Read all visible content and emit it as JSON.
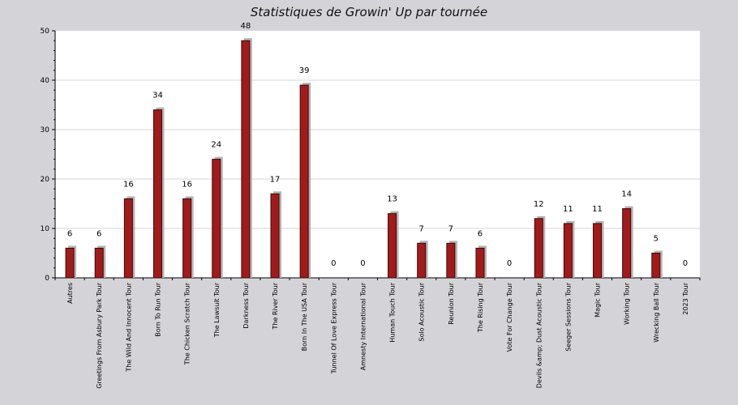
{
  "chart_data": {
    "type": "bar",
    "title": "Statistiques de Growin' Up par tournée",
    "xlabel": "",
    "ylabel": "",
    "ylim": [
      0,
      50
    ],
    "yticks": [
      0,
      10,
      20,
      30,
      40,
      50
    ],
    "grid": true,
    "categories": [
      "Autres",
      "Greetings From Asbury Park Tour",
      "The Wild And Innocent Tour",
      "Born To Run Tour",
      "The Chicken Scratch Tour",
      "The Lawsuit Tour",
      "Darkness Tour",
      "The River Tour",
      "Born In The USA Tour",
      "Tunnel Of Love Express Tour",
      "Amnesty International Tour",
      "Human Touch Tour",
      "Solo Acoustic Tour",
      "Reunion Tour",
      "The Rising Tour",
      "Vote For Change Tour",
      "Devils &amp; Dust Acoustic Tour",
      "Seeger Sessions Tour",
      "Magic Tour",
      "Working Tour",
      "Wrecking Ball Tour",
      "2023 Tour"
    ],
    "values": [
      6,
      6,
      16,
      34,
      16,
      24,
      48,
      17,
      39,
      0,
      0,
      13,
      7,
      7,
      6,
      0,
      12,
      11,
      11,
      14,
      5,
      0
    ],
    "colors": {
      "bar": "#a31a1a",
      "bar_edge": "#3a0808",
      "shadow": "#b4b4b4",
      "plot_bg": "#ffffff",
      "grid": "#d4d4d4"
    }
  }
}
